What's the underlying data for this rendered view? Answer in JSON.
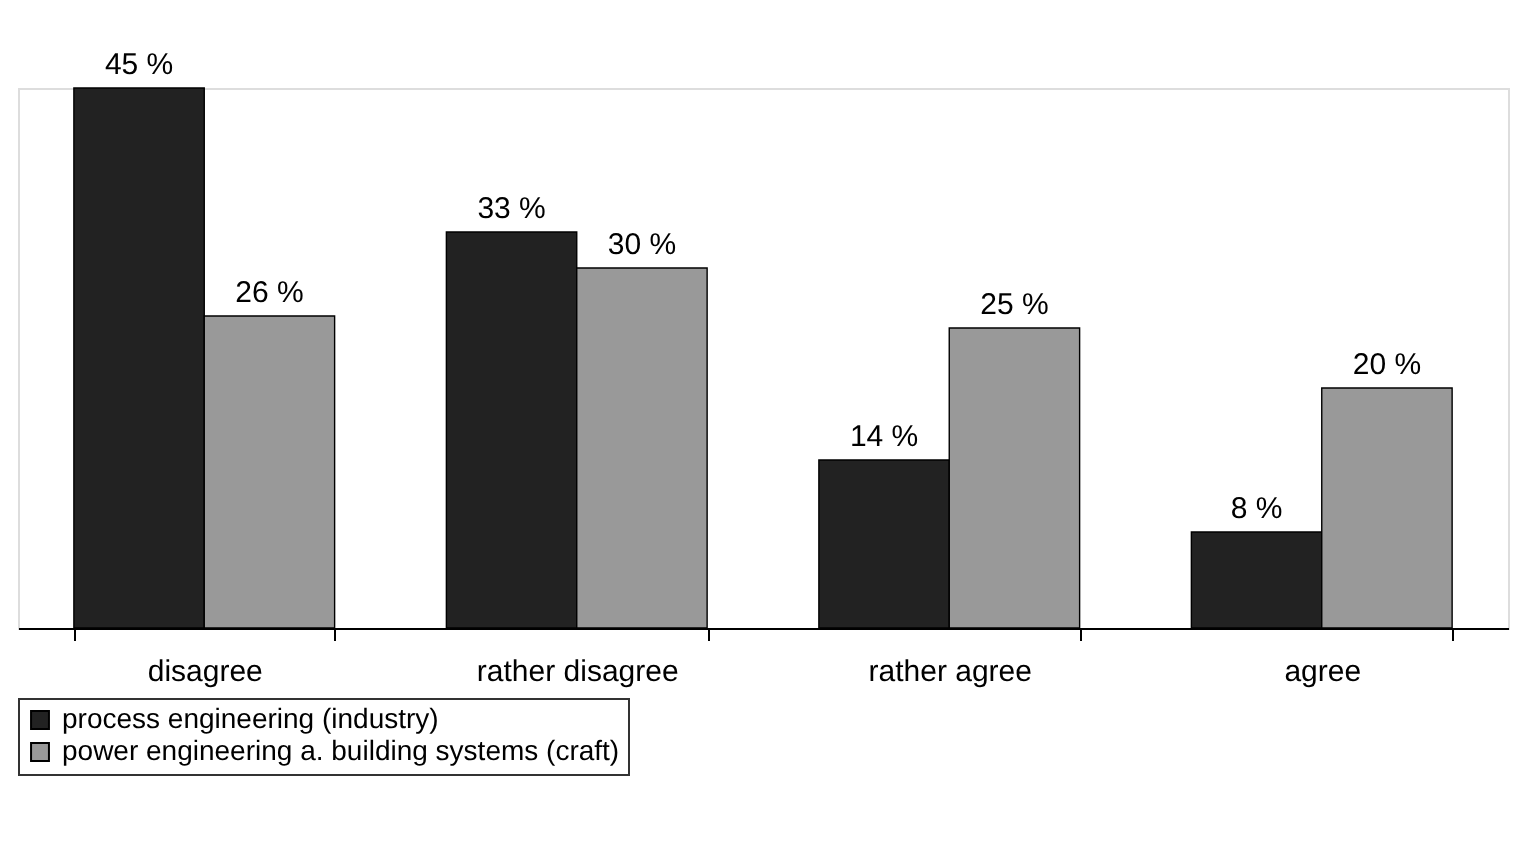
{
  "chart_data": {
    "type": "bar",
    "categories": [
      "disagree",
      "rather disagree",
      "rather agree",
      "agree"
    ],
    "series": [
      {
        "name": "process engineering (industry)",
        "color": "#222222",
        "values": [
          45,
          33,
          14,
          8
        ],
        "value_labels": [
          "45 %",
          "33 %",
          "14 %",
          "8 %"
        ]
      },
      {
        "name": "power engineering a. building systems (craft)",
        "color": "#999999",
        "values": [
          26,
          30,
          25,
          20
        ],
        "value_labels": [
          "26 %",
          "30 %",
          "25 %",
          "20 %"
        ]
      }
    ],
    "legend": "bottom",
    "grid": false
  }
}
